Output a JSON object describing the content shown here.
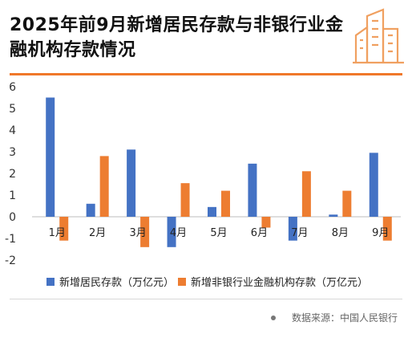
{
  "title": "2025年前9月新增居民存款与非银行业金融机构存款情况",
  "source": "数据来源：中国人民银行",
  "colors": {
    "accent": "#f0782a",
    "series1": "#4472c4",
    "series2": "#ed7d31"
  },
  "logo_icon": "buildings-icon",
  "chart_data": {
    "type": "bar",
    "categories": [
      "1月",
      "2月",
      "3月",
      "4月",
      "5月",
      "6月",
      "7月",
      "8月",
      "9月"
    ],
    "series": [
      {
        "name": "新增居民存款（万亿元）",
        "values": [
          5.5,
          0.6,
          3.1,
          -1.4,
          0.45,
          2.45,
          -1.1,
          0.1,
          2.95
        ]
      },
      {
        "name": "新增非银行业金融机构存款（万亿元）",
        "values": [
          -1.1,
          2.8,
          -1.4,
          1.55,
          1.2,
          -0.5,
          2.1,
          1.2,
          -1.1
        ]
      }
    ],
    "ylim": [
      -2,
      6
    ],
    "yticks": [
      -2,
      -1,
      0,
      1,
      2,
      3,
      4,
      5,
      6
    ],
    "grid": false,
    "legend": "bottom"
  }
}
